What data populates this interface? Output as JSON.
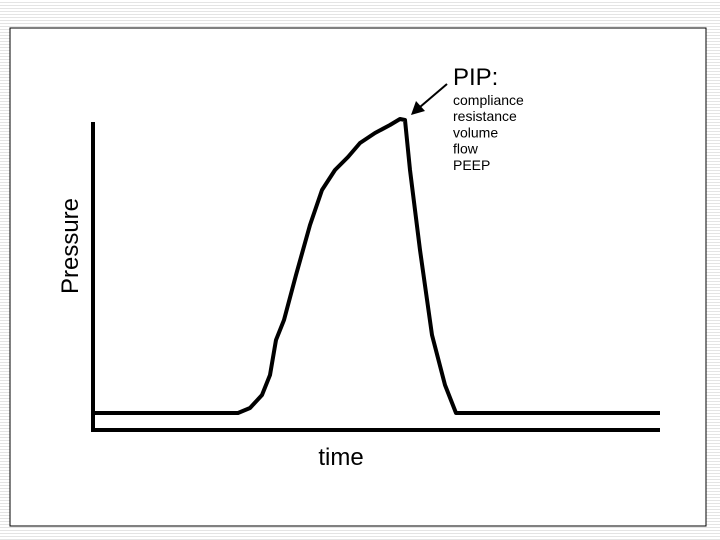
{
  "pip": {
    "label": "PIP:",
    "factors": [
      "compliance",
      "resistance",
      "volume",
      "flow",
      "PEEP"
    ]
  },
  "axes": {
    "y_label": "Pressure",
    "x_label": "time"
  }
}
